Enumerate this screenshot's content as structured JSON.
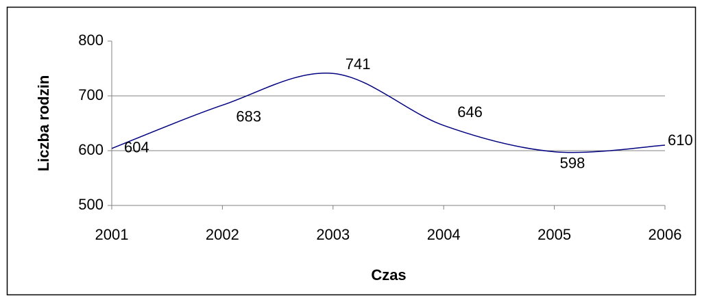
{
  "chart_data": {
    "type": "line",
    "x_label": "Czas",
    "y_label": "Liczba rodzin",
    "x": [
      2001,
      2002,
      2003,
      2004,
      2005,
      2006
    ],
    "series": [
      {
        "name": "Liczba rodzin",
        "color": "#000080",
        "values": [
          604,
          683,
          741,
          646,
          598,
          610
        ]
      }
    ],
    "xlim": [
      2001,
      2006
    ],
    "xticks": [
      2001,
      2002,
      2003,
      2004,
      2005,
      2006
    ],
    "ylim": [
      500,
      800
    ],
    "yticks": [
      500,
      600,
      700,
      800
    ],
    "grid": true,
    "smooth": true,
    "data_labels": true
  }
}
